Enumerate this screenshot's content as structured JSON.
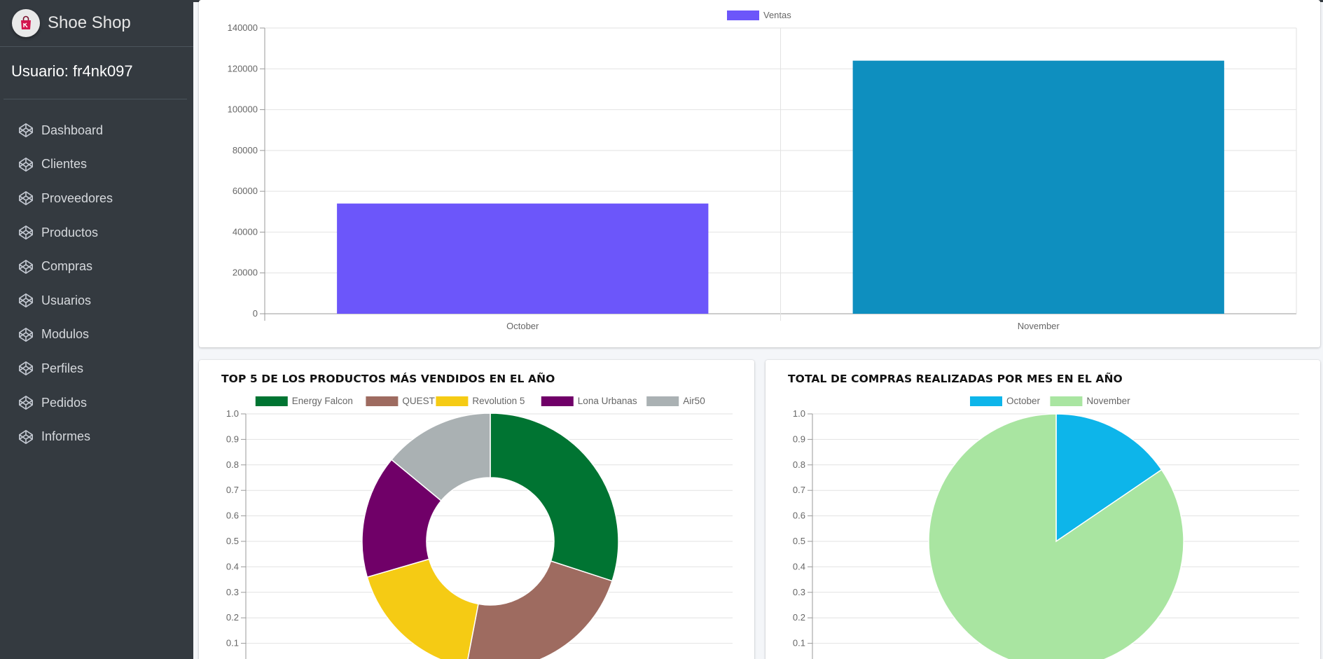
{
  "sidebar": {
    "brand": "Shoe Shop",
    "user": "Usuario: fr4nk097",
    "items": [
      {
        "label": "Dashboard",
        "icon": "codepen-icon"
      },
      {
        "label": "Clientes",
        "icon": "codepen-icon"
      },
      {
        "label": "Proveedores",
        "icon": "codepen-icon"
      },
      {
        "label": "Productos",
        "icon": "codepen-icon"
      },
      {
        "label": "Compras",
        "icon": "codepen-icon"
      },
      {
        "label": "Usuarios",
        "icon": "codepen-icon"
      },
      {
        "label": "Modulos",
        "icon": "codepen-icon"
      },
      {
        "label": "Perfiles",
        "icon": "codepen-icon"
      },
      {
        "label": "Pedidos",
        "icon": "codepen-icon"
      },
      {
        "label": "Informes",
        "icon": "codepen-icon"
      }
    ]
  },
  "cards": {
    "top5_title": "TOP 5 DE LOS PRODUCTOS MÁS VENDIDOS EN EL AÑO",
    "monthly_title": "TOTAL DE COMPRAS REALIZADAS POR MES EN EL AÑO"
  },
  "chart_data": [
    {
      "type": "bar",
      "legend": [
        "Ventas"
      ],
      "categories": [
        "October",
        "November"
      ],
      "series": [
        {
          "name": "Ventas",
          "values": [
            54000,
            124000
          ]
        }
      ],
      "colors": [
        "#6c56fa",
        "#0e8fbf"
      ],
      "ylim": [
        0,
        140000
      ],
      "yticks": [
        0,
        20000,
        40000,
        60000,
        80000,
        100000,
        120000,
        140000
      ],
      "grid": true,
      "legend_position": "top"
    },
    {
      "type": "pie",
      "variant": "doughnut",
      "labels": [
        "Energy Falcon",
        "QUEST",
        "Revolution 5",
        "Lona Urbanas",
        "Air50"
      ],
      "values": [
        30,
        23,
        17.5,
        15.5,
        14
      ],
      "colors": [
        "#007432",
        "#9e6b60",
        "#f5cb14",
        "#700068",
        "#aab1b3"
      ],
      "ylim": [
        0,
        1.0
      ],
      "yticks": [
        1.0,
        0.9,
        0.8,
        0.7,
        0.6,
        0.5,
        0.4,
        0.3,
        0.2,
        0.1
      ],
      "grid": true,
      "legend_position": "top"
    },
    {
      "type": "pie",
      "labels": [
        "October",
        "November"
      ],
      "values": [
        15.5,
        84.5
      ],
      "colors": [
        "#0db5ea",
        "#a9e5a1"
      ],
      "ylim": [
        0,
        1.0
      ],
      "yticks": [
        1.0,
        0.9,
        0.8,
        0.7,
        0.6,
        0.5,
        0.4,
        0.3,
        0.2,
        0.1
      ],
      "grid": true,
      "legend_position": "top"
    }
  ]
}
